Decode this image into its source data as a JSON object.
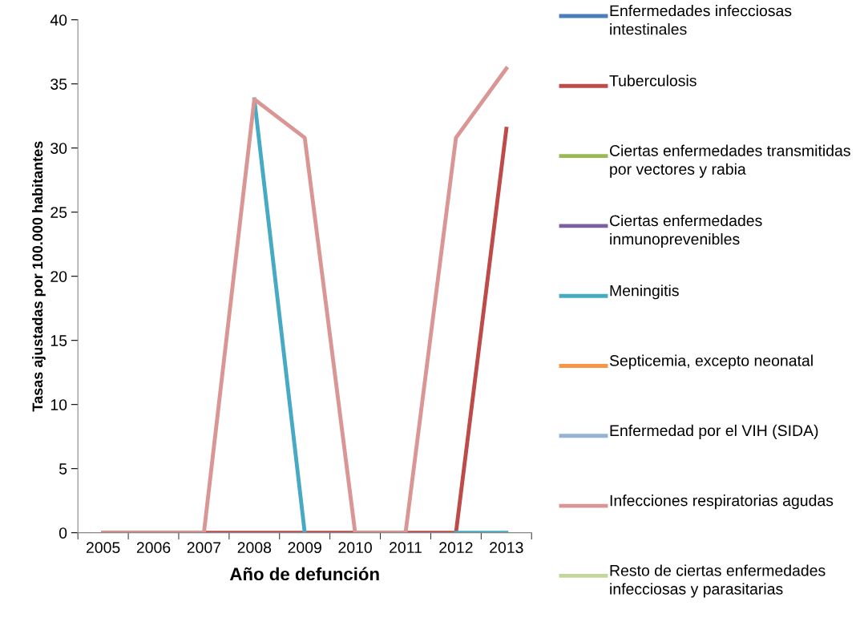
{
  "chart_data": {
    "type": "line",
    "xlabel": "Año de defunción",
    "ylabel": "Tasas ajustadas por 100.000 habitantes",
    "categories": [
      "2005",
      "2006",
      "2007",
      "2008",
      "2009",
      "2010",
      "2011",
      "2012",
      "2013"
    ],
    "ylim": [
      0,
      40
    ],
    "yticks": [
      0,
      5,
      10,
      15,
      20,
      25,
      30,
      35,
      40
    ],
    "grid": false,
    "legend": "right",
    "marker": "none",
    "line_style": "solid",
    "series": [
      {
        "name": "Enfermedades infecciosas intestinales",
        "color": "#4a7ebb",
        "values": [
          null,
          null,
          null,
          null,
          null,
          null,
          null,
          null,
          null
        ]
      },
      {
        "name": "Tuberculosis",
        "color": "#be4b48",
        "values": [
          0,
          0,
          0,
          0,
          0,
          0,
          0,
          0,
          31.5
        ]
      },
      {
        "name": "Ciertas enfermedades transmitidas por vectores y rabia",
        "color": "#98b954",
        "values": [
          null,
          null,
          null,
          null,
          null,
          null,
          null,
          null,
          null
        ]
      },
      {
        "name": "Ciertas enfermedades inmunoprevenibles",
        "color": "#7d60a0",
        "values": [
          null,
          null,
          null,
          null,
          null,
          null,
          null,
          null,
          null
        ]
      },
      {
        "name": "Meningitis",
        "color": "#46aac5",
        "values": [
          null,
          null,
          null,
          33.8,
          0,
          null,
          null,
          0,
          0
        ]
      },
      {
        "name": "Septicemia, excepto neonatal",
        "color": "#f79646",
        "values": [
          null,
          null,
          null,
          null,
          null,
          null,
          null,
          null,
          null
        ]
      },
      {
        "name": "Enfermedad por el VIH (SIDA)",
        "color": "#95b3d7",
        "values": [
          null,
          null,
          null,
          null,
          null,
          null,
          null,
          null,
          null
        ]
      },
      {
        "name": "Infecciones respiratorias agudas",
        "color": "#d99694",
        "values": [
          0,
          0,
          0,
          33.8,
          30.8,
          0,
          0,
          30.8,
          36.2
        ]
      },
      {
        "name": "Resto de ciertas enfermedades infecciosas y parasitarias",
        "color": "#c3d69b",
        "values": [
          null,
          null,
          null,
          null,
          null,
          null,
          null,
          null,
          null
        ]
      }
    ]
  }
}
